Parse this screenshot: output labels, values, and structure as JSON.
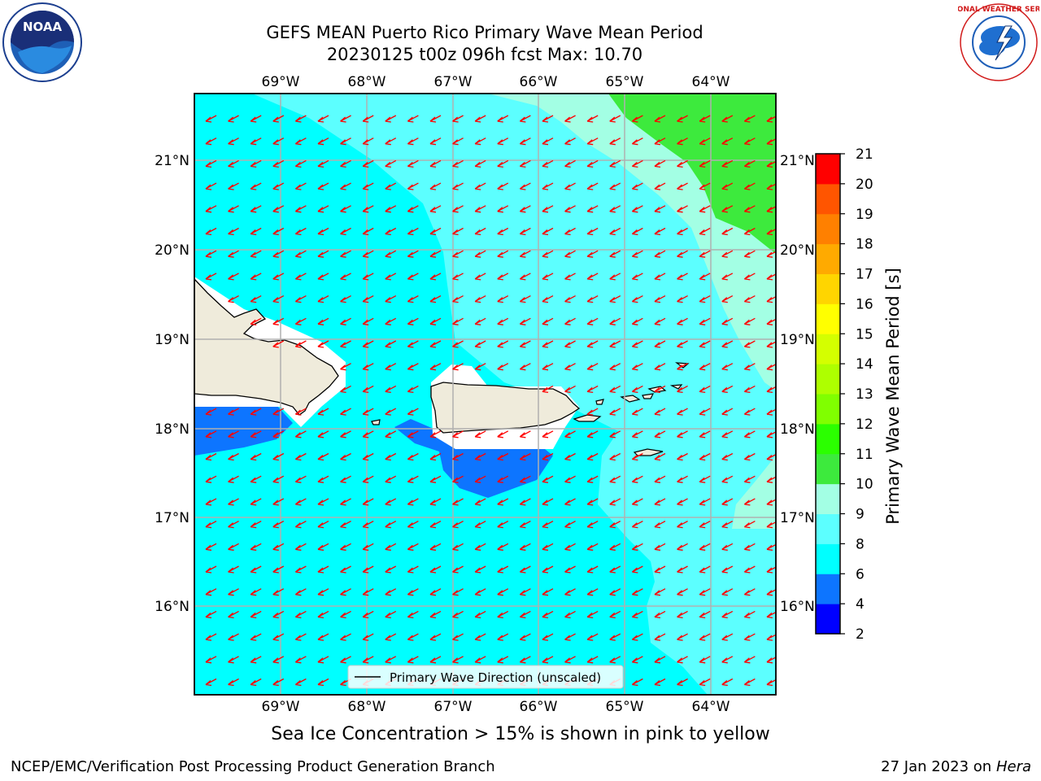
{
  "header": {
    "title_line1": "GEFS MEAN Puerto Rico Primary Wave Mean Period",
    "title_line2": "20230125 t00z 096h fcst   Max: 10.70"
  },
  "logos": {
    "noaa_text": "NOAA",
    "nws_text": "NATIONAL WEATHER SERVICE"
  },
  "map": {
    "lon_labels": [
      "69°W",
      "68°W",
      "67°W",
      "66°W",
      "65°W",
      "64°W"
    ],
    "lat_labels": [
      "21°N",
      "20°N",
      "19°N",
      "18°N",
      "17°N",
      "16°N"
    ],
    "legend_label": "Primary Wave Direction (unscaled)",
    "arrow_color": "#ff0000",
    "land_color": "#efebdb"
  },
  "colorbar": {
    "label": "Primary Wave Mean Period [s]",
    "ticks": [
      "2",
      "4",
      "6",
      "8",
      "9",
      "10",
      "11",
      "12",
      "13",
      "14",
      "15",
      "16",
      "17",
      "18",
      "19",
      "20",
      "21"
    ],
    "colors": [
      "#0000ff",
      "#0d75ff",
      "#00ffff",
      "#5cffff",
      "#a3ffe4",
      "#3dea3d",
      "#2bff00",
      "#80ff00",
      "#aeff00",
      "#d4ff00",
      "#ffff00",
      "#ffd500",
      "#ffaa00",
      "#ff8000",
      "#ff5500",
      "#ff0000"
    ]
  },
  "notes": {
    "sea_ice": "Sea Ice Concentration > 15% is shown in pink to yellow"
  },
  "footer": {
    "left": "NCEP/EMC/Verification Post Processing Product Generation Branch",
    "right_prefix": "27 Jan 2023 on ",
    "right_machine": "Hera"
  }
}
